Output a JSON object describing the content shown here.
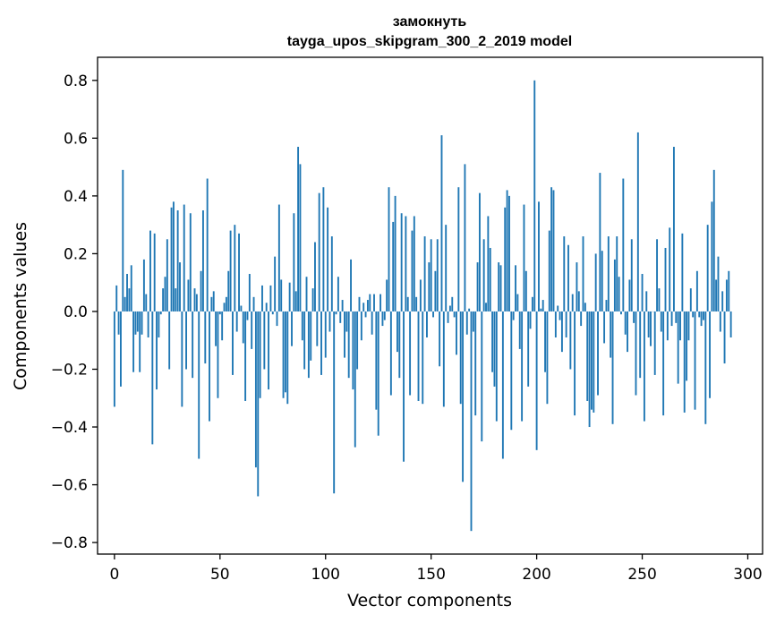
{
  "chart_data": {
    "type": "bar",
    "title_line1": "замокнуть",
    "title_line2": "tayga_upos_skipgram_300_2_2019 model",
    "xlabel": "Vector components",
    "ylabel": "Components values",
    "xlim": [
      -8,
      307
    ],
    "ylim": [
      -0.84,
      0.88
    ],
    "xticks": [
      0,
      50,
      100,
      150,
      200,
      250,
      300
    ],
    "xtick_labels": [
      "0",
      "50",
      "100",
      "150",
      "200",
      "250",
      "300"
    ],
    "yticks": [
      0.8,
      0.6,
      0.4,
      0.2,
      0.0,
      -0.2,
      -0.4,
      -0.6,
      -0.8
    ],
    "ytick_labels": [
      "0.8",
      "0.6",
      "0.4",
      "0.2",
      "0.0",
      "−0.2",
      "−0.4",
      "−0.6",
      "−0.8"
    ],
    "grid": false,
    "color": "#1f77b4",
    "values": [
      -0.33,
      0.09,
      -0.08,
      -0.26,
      0.49,
      0.05,
      0.13,
      0.08,
      0.16,
      -0.21,
      -0.08,
      -0.07,
      -0.21,
      -0.08,
      0.18,
      0.06,
      -0.09,
      0.28,
      -0.46,
      0.27,
      -0.27,
      -0.09,
      -0.01,
      0.08,
      0.12,
      0.25,
      -0.2,
      0.36,
      0.38,
      0.08,
      0.35,
      0.17,
      -0.33,
      0.37,
      -0.2,
      0.11,
      0.34,
      -0.23,
      0.08,
      0.06,
      -0.51,
      0.14,
      0.35,
      -0.18,
      0.46,
      -0.38,
      0.05,
      0.07,
      -0.12,
      -0.3,
      -0.01,
      -0.1,
      0.03,
      0.05,
      0.14,
      0.28,
      -0.22,
      0.3,
      -0.07,
      0.27,
      0.02,
      -0.11,
      -0.31,
      -0.03,
      0.13,
      -0.13,
      0.05,
      -0.54,
      -0.64,
      -0.3,
      0.09,
      -0.2,
      0.03,
      -0.27,
      0.09,
      -0.01,
      0.19,
      -0.05,
      0.37,
      0.11,
      -0.3,
      -0.28,
      -0.32,
      0.1,
      -0.12,
      0.34,
      0.07,
      0.57,
      0.51,
      -0.1,
      -0.2,
      0.12,
      -0.23,
      -0.17,
      0.08,
      0.24,
      -0.12,
      0.41,
      -0.22,
      0.43,
      -0.16,
      0.36,
      -0.07,
      0.26,
      -0.63,
      -0.01,
      0.12,
      -0.04,
      0.04,
      -0.16,
      -0.07,
      -0.23,
      0.18,
      -0.27,
      -0.47,
      -0.2,
      0.05,
      -0.1,
      0.03,
      -0.02,
      0.04,
      0.06,
      -0.08,
      0.06,
      -0.34,
      -0.43,
      0.06,
      -0.05,
      -0.03,
      0.11,
      0.43,
      -0.29,
      0.31,
      0.4,
      -0.14,
      -0.23,
      0.34,
      -0.52,
      0.33,
      0.05,
      -0.29,
      0.28,
      0.33,
      0.05,
      -0.31,
      0.11,
      -0.32,
      0.26,
      -0.09,
      0.17,
      0.25,
      -0.02,
      0.14,
      0.25,
      -0.19,
      0.61,
      -0.33,
      0.3,
      -0.04,
      0.02,
      0.05,
      -0.02,
      -0.15,
      0.43,
      -0.32,
      -0.59,
      0.51,
      -0.08,
      0.01,
      -0.76,
      -0.07,
      -0.36,
      0.17,
      0.41,
      -0.45,
      0.25,
      0.03,
      0.33,
      0.22,
      -0.21,
      -0.26,
      -0.38,
      0.17,
      0.16,
      -0.51,
      0.36,
      0.42,
      0.4,
      -0.41,
      -0.03,
      0.16,
      0.06,
      -0.13,
      -0.38,
      0.37,
      0.14,
      -0.26,
      -0.06,
      0.05,
      0.8,
      -0.48,
      0.38,
      0.01,
      0.04,
      -0.21,
      -0.32,
      0.28,
      0.43,
      0.42,
      -0.09,
      0.02,
      -0.03,
      -0.14,
      0.26,
      -0.09,
      0.23,
      -0.2,
      0.06,
      -0.36,
      0.17,
      0.07,
      -0.05,
      0.26,
      0.03,
      -0.31,
      -0.4,
      -0.34,
      -0.35,
      0.2,
      -0.29,
      0.48,
      0.21,
      -0.11,
      0.04,
      0.26,
      -0.16,
      -0.39,
      0.18,
      0.26,
      0.12,
      -0.01,
      0.46,
      -0.08,
      -0.14,
      0.11,
      0.25,
      -0.04,
      -0.29,
      0.62,
      -0.23,
      0.13,
      -0.38,
      0.07,
      -0.09,
      -0.12,
      0.0,
      -0.22,
      0.25,
      0.08,
      -0.07,
      -0.36,
      0.22,
      -0.1,
      0.29,
      -0.05,
      0.57,
      -0.04,
      -0.25,
      -0.1,
      0.27,
      -0.35,
      -0.24,
      -0.1,
      0.08,
      -0.02,
      -0.34,
      0.14,
      -0.02,
      -0.05,
      -0.03,
      -0.39,
      0.3,
      -0.3,
      0.38,
      0.49,
      0.11,
      0.19,
      -0.07,
      0.07,
      -0.18,
      0.11,
      0.14,
      -0.09
    ]
  }
}
